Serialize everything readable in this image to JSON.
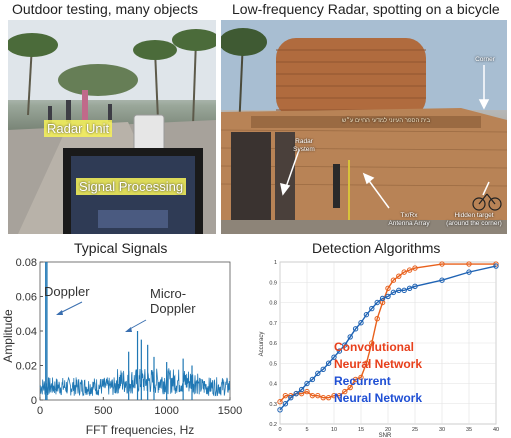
{
  "panels": {
    "top_left_title": "Outdoor testing, many objects",
    "top_right_title": "Low-frequency Radar, spotting on a bicycle",
    "bottom_left_title": "Typical Signals",
    "bottom_right_title": "Detection Algorithms"
  },
  "photo_left": {
    "radar_unit_label": "Radar Unit",
    "signal_processing_label": "Signal Processing"
  },
  "photo_right": {
    "building_sign": "בית הספר העיוני למדעי החיים ע״ש",
    "corner_label": "Corner",
    "radar_system_label": "Radar\nSystem",
    "antenna_label": "Tx/Rx\nAntenna Array",
    "hidden_target_label": "Hidden target\n(around the corner)"
  },
  "chart_data": [
    {
      "type": "line",
      "title": "Typical Signals",
      "xlabel": "FFT frequencies, Hz",
      "ylabel": "Amplitude",
      "xlim": [
        0,
        1500
      ],
      "ylim": [
        0,
        0.08
      ],
      "x_ticks": [
        "0",
        "500",
        "1000",
        "1500"
      ],
      "y_ticks": [
        "0",
        "0.02",
        "0.04",
        "0.06",
        "0.08"
      ],
      "annotations": [
        "Doppler",
        "Micro-\nDoppler"
      ],
      "series_color": "#1f77b4",
      "spikes": [
        {
          "x": 45,
          "y": 0.08
        },
        {
          "x": 55,
          "y": 0.08
        },
        {
          "x": 700,
          "y": 0.028
        },
        {
          "x": 770,
          "y": 0.04
        },
        {
          "x": 800,
          "y": 0.035
        },
        {
          "x": 850,
          "y": 0.032
        },
        {
          "x": 900,
          "y": 0.025
        },
        {
          "x": 1000,
          "y": 0.022
        },
        {
          "x": 1130,
          "y": 0.024
        },
        {
          "x": 1200,
          "y": 0.02
        }
      ],
      "noise_floor": 0.012
    },
    {
      "type": "line",
      "title": "Detection Algorithms",
      "xlabel": "SNR",
      "ylabel": "Accuracy",
      "xlim": [
        0,
        40
      ],
      "ylim": [
        0.2,
        1
      ],
      "x_ticks": [
        "0",
        "5",
        "10",
        "15",
        "20",
        "25",
        "30",
        "35",
        "40"
      ],
      "y_ticks": [
        "0.2",
        "0.3",
        "0.4",
        "0.5",
        "0.6",
        "0.7",
        "0.8",
        "0.9",
        "1"
      ],
      "grid": true,
      "series": [
        {
          "name": "Convolutional\nNeural Network",
          "color": "#e8601c",
          "x": [
            0,
            1,
            2,
            3,
            4,
            5,
            6,
            7,
            8,
            9,
            10,
            11,
            12,
            13,
            14,
            15,
            16,
            17,
            18,
            19,
            20,
            21,
            22,
            23,
            24,
            25,
            30,
            35,
            40
          ],
          "y": [
            0.31,
            0.34,
            0.34,
            0.35,
            0.35,
            0.36,
            0.34,
            0.34,
            0.33,
            0.33,
            0.34,
            0.34,
            0.36,
            0.38,
            0.42,
            0.43,
            0.5,
            0.6,
            0.72,
            0.8,
            0.87,
            0.91,
            0.93,
            0.95,
            0.96,
            0.97,
            0.99,
            0.99,
            0.99
          ]
        },
        {
          "name": "Recurrent\nNeural Network",
          "color": "#1f63b4",
          "x": [
            0,
            1,
            2,
            3,
            4,
            5,
            6,
            7,
            8,
            9,
            10,
            11,
            12,
            13,
            14,
            15,
            16,
            17,
            18,
            19,
            20,
            21,
            22,
            23,
            24,
            25,
            30,
            35,
            40
          ],
          "y": [
            0.27,
            0.3,
            0.33,
            0.35,
            0.37,
            0.4,
            0.42,
            0.45,
            0.47,
            0.5,
            0.53,
            0.56,
            0.59,
            0.63,
            0.67,
            0.7,
            0.74,
            0.77,
            0.8,
            0.82,
            0.83,
            0.85,
            0.86,
            0.86,
            0.87,
            0.88,
            0.91,
            0.95,
            0.98
          ]
        }
      ],
      "legend_colors": [
        "#e8401c",
        "#1f4fd4"
      ]
    }
  ]
}
